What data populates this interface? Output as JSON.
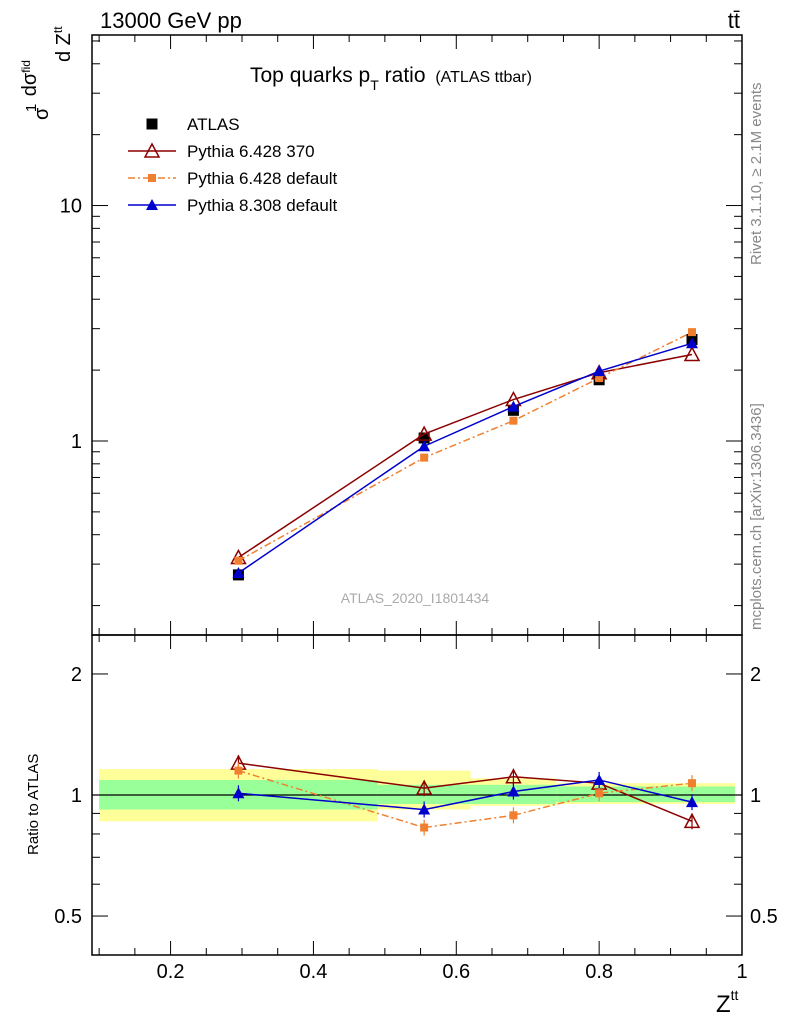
{
  "header": {
    "left": "13000 GeV pp",
    "right": "tt̄"
  },
  "side_text": {
    "rivet": "Rivet 3.1.10, ≥ 2.1M events",
    "mcplots": "mcplots.cern.ch [arXiv:1306.3436]"
  },
  "chart_data": [
    {
      "type": "line",
      "panel": "main",
      "title": "Top quarks p",
      "title_sub": "T",
      "title_rest": " ratio",
      "title_small": "(ATLAS ttbar)",
      "ylabel": "1/σ dσ^fid / d Z^tt",
      "ylabel_parts": {
        "num1": "1",
        "den1": "σ",
        "num2": "dσ",
        "num2_sup": "fid",
        "den2": "d Z",
        "den2_sup": "tt"
      },
      "xlabel": "Z",
      "xlabel_sup": "tt",
      "xscale": "linear",
      "yscale": "log",
      "xlim": [
        0.09,
        1.0
      ],
      "ylim": [
        0.15,
        53
      ],
      "x_ticks": [
        "0.2",
        "0.4",
        "0.6",
        "0.8",
        "1"
      ],
      "x_tick_values": [
        0.2,
        0.4,
        0.6,
        0.8,
        1.0
      ],
      "y_ticks": [
        "1",
        "10"
      ],
      "y_tick_values": [
        1,
        10
      ],
      "legend_position": "top-left",
      "watermark": "ATLAS_2020_I1801434",
      "x": [
        0.295,
        0.555,
        0.68,
        0.8,
        0.93
      ],
      "series": [
        {
          "name": "ATLAS",
          "color": "#000000",
          "marker": "square",
          "line": "none",
          "values": [
            0.27,
            1.03,
            1.35,
            1.82,
            2.7
          ]
        },
        {
          "name": "Pythia 6.428 370",
          "color": "#8b0000",
          "marker": "triangle-open",
          "line": "solid",
          "values": [
            0.32,
            1.07,
            1.5,
            1.95,
            2.33
          ]
        },
        {
          "name": "Pythia 6.428 default",
          "color": "#f08030",
          "marker": "square-small",
          "line": "dashdot",
          "values": [
            0.31,
            0.85,
            1.22,
            1.85,
            2.9
          ]
        },
        {
          "name": "Pythia 8.308 default",
          "color": "#0000cc",
          "marker": "triangle",
          "line": "solid",
          "values": [
            0.275,
            0.95,
            1.4,
            1.98,
            2.6
          ]
        }
      ]
    },
    {
      "type": "line",
      "panel": "ratio",
      "ylabel": "Ratio to ATLAS",
      "xlabel": "Z",
      "xlabel_sup": "tt",
      "yscale": "log",
      "xlim": [
        0.09,
        1.0
      ],
      "ylim": [
        0.4,
        2.5
      ],
      "y_ticks": [
        "0.5",
        "1",
        "2"
      ],
      "y_tick_values": [
        0.5,
        1,
        2
      ],
      "x": [
        0.295,
        0.555,
        0.68,
        0.8,
        0.93
      ],
      "bands": {
        "bin_edges": [
          0.1,
          0.49,
          0.62,
          0.74,
          0.86,
          0.99
        ],
        "stat": [
          [
            0.92,
            1.09
          ],
          [
            0.95,
            1.06
          ],
          [
            0.95,
            1.06
          ],
          [
            0.96,
            1.05
          ],
          [
            0.96,
            1.05
          ]
        ],
        "total": [
          [
            0.86,
            1.16
          ],
          [
            0.92,
            1.15
          ],
          [
            0.94,
            1.1
          ],
          [
            0.95,
            1.07
          ],
          [
            0.95,
            1.07
          ]
        ],
        "stat_color": "#99ff99",
        "total_color": "#ffff99"
      },
      "series": [
        {
          "name": "Pythia 6.428 370",
          "color": "#8b0000",
          "marker": "triangle-open",
          "line": "solid",
          "values": [
            1.2,
            1.04,
            1.11,
            1.07,
            0.86
          ]
        },
        {
          "name": "Pythia 6.428 default",
          "color": "#f08030",
          "marker": "square-small",
          "line": "dashdot",
          "values": [
            1.15,
            0.83,
            0.89,
            1.01,
            1.07
          ]
        },
        {
          "name": "Pythia 8.308 default",
          "color": "#0000cc",
          "marker": "triangle",
          "line": "solid",
          "values": [
            1.01,
            0.92,
            1.02,
            1.09,
            0.96
          ]
        }
      ]
    }
  ]
}
